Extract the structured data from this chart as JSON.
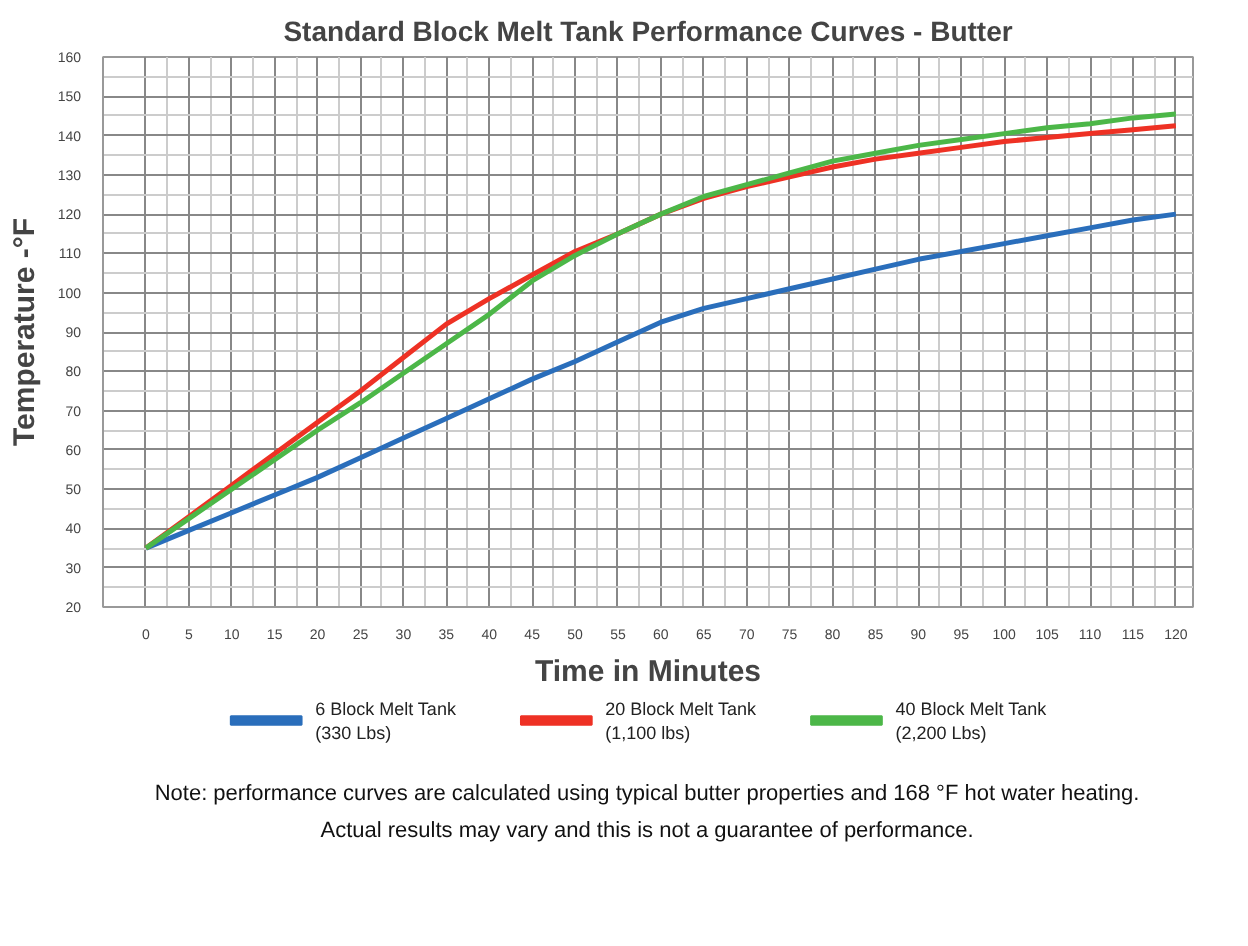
{
  "chart_data": {
    "type": "line",
    "title": "Standard Block Melt Tank Performance Curves - Butter",
    "xlabel": "Time in Minutes",
    "ylabel": "Temperature -°F",
    "x": [
      0,
      5,
      10,
      15,
      20,
      25,
      30,
      35,
      40,
      45,
      50,
      55,
      60,
      65,
      70,
      75,
      80,
      85,
      90,
      95,
      100,
      105,
      110,
      115,
      120
    ],
    "series": [
      {
        "name": "6 Block Melt Tank\n(330 Lbs)",
        "color": "#2a6ebb",
        "values": [
          35,
          39.5,
          44,
          48.5,
          53,
          58,
          63,
          68,
          73,
          78,
          82.5,
          87.5,
          92.5,
          96,
          98.5,
          101,
          103.5,
          106,
          108.5,
          110.5,
          112.5,
          114.5,
          116.5,
          118.5,
          120
        ]
      },
      {
        "name": "20 Block Melt Tank\n(1,100 lbs)",
        "color": "#ee3124",
        "values": [
          35,
          43,
          51,
          59,
          67,
          75,
          83.5,
          92,
          98.5,
          104.5,
          110.5,
          115,
          120,
          124,
          127,
          129.5,
          132,
          134,
          135.5,
          137,
          138.5,
          139.5,
          140.5,
          141.5,
          142.5
        ]
      },
      {
        "name": "40 Block Melt Tank\n(2,200 Lbs)",
        "color": "#4cb748",
        "values": [
          35,
          42.5,
          50,
          57.5,
          65,
          72,
          79.5,
          87,
          94.5,
          103,
          109.5,
          115,
          120,
          124.5,
          127.5,
          130.5,
          133.5,
          135.5,
          137.5,
          139,
          140.5,
          142,
          143,
          144.5,
          145.5
        ]
      }
    ],
    "xlim": [
      -5,
      122
    ],
    "xticks": [
      0,
      5,
      10,
      15,
      20,
      25,
      30,
      35,
      40,
      45,
      50,
      55,
      60,
      65,
      70,
      75,
      80,
      85,
      90,
      95,
      100,
      105,
      110,
      115,
      120
    ],
    "ylim": [
      20,
      160
    ],
    "yticks": [
      20,
      30,
      40,
      50,
      60,
      70,
      80,
      90,
      100,
      110,
      120,
      130,
      140,
      150,
      160
    ],
    "grid": true,
    "legend": "bottom",
    "marker": "none",
    "line_style": "solid",
    "annotations": [
      "Note: performance curves are calculated using typical butter properties and 168 °F hot water heating.",
      "Actual results may vary and this is not a guarantee of performance."
    ]
  }
}
